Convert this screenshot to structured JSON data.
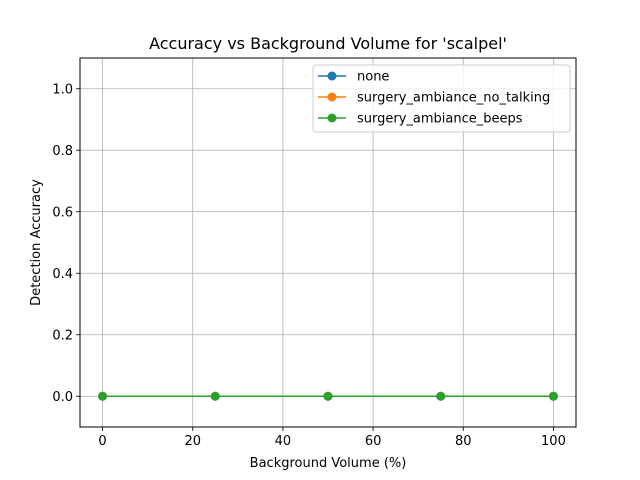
{
  "chart_data": {
    "type": "line",
    "title": "Accuracy vs Background Volume for 'scalpel'",
    "xlabel": "Background Volume (%)",
    "ylabel": "Detection Accuracy",
    "x": [
      0,
      25,
      50,
      75,
      100
    ],
    "xlim": [
      -5,
      105
    ],
    "ylim": [
      -0.1,
      1.1
    ],
    "xticks": [
      0,
      20,
      40,
      60,
      80,
      100
    ],
    "yticks": [
      0.0,
      0.2,
      0.4,
      0.6,
      0.8,
      1.0
    ],
    "xtick_labels": [
      "0",
      "20",
      "40",
      "60",
      "80",
      "100"
    ],
    "ytick_labels": [
      "0.0",
      "0.2",
      "0.4",
      "0.6",
      "0.8",
      "1.0"
    ],
    "grid": true,
    "legend_position": "top-right",
    "series": [
      {
        "name": "none",
        "values": [
          0,
          0,
          0,
          0,
          0
        ],
        "color": "#1f77b4"
      },
      {
        "name": "surgery_ambiance_no_talking",
        "values": [
          0,
          0,
          0,
          0,
          0
        ],
        "color": "#ff7f0e"
      },
      {
        "name": "surgery_ambiance_beeps",
        "values": [
          0,
          0,
          0,
          0,
          0
        ],
        "color": "#2ca02c"
      }
    ]
  }
}
